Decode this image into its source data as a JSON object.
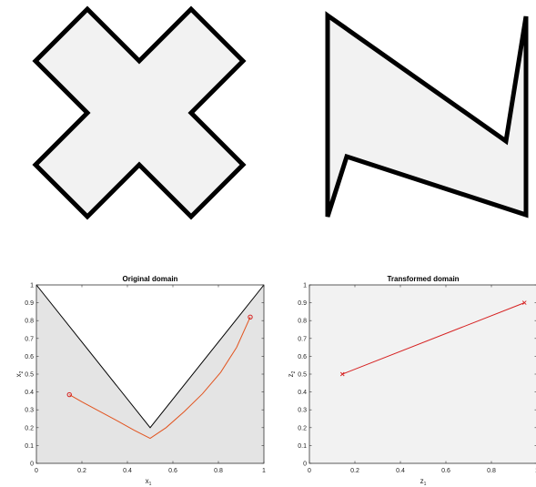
{
  "shapes": {
    "cross": {
      "fill": "#f2f2f2",
      "stroke": "#000000"
    },
    "zshape": {
      "fill": "#f2f2f2",
      "stroke": "#000000"
    }
  },
  "chart_data": [
    {
      "type": "line",
      "title": "Original domain",
      "xlabel": "x",
      "xlabel_sub": "1",
      "ylabel": "x",
      "ylabel_sub": "2",
      "xlim": [
        0,
        1
      ],
      "ylim": [
        0,
        1
      ],
      "xticks": [
        "0",
        "0.2",
        "0.4",
        "0.6",
        "0.8",
        "1"
      ],
      "yticks": [
        "0",
        "0.1",
        "0.2",
        "0.3",
        "0.4",
        "0.5",
        "0.6",
        "0.7",
        "0.8",
        "0.9",
        "1"
      ],
      "region": {
        "x": [
          0,
          0.5,
          1,
          1,
          0
        ],
        "y": [
          1,
          0.2,
          1,
          0,
          0
        ],
        "fill": "#e4e4e4"
      },
      "boundary": {
        "x": [
          0,
          0.5,
          1
        ],
        "y": [
          1,
          0.2,
          1
        ],
        "color": "#000000"
      },
      "curve": {
        "x": [
          0.145,
          0.2,
          0.28,
          0.36,
          0.43,
          0.5,
          0.57,
          0.65,
          0.73,
          0.81,
          0.88,
          0.94
        ],
        "y": [
          0.385,
          0.345,
          0.29,
          0.235,
          0.185,
          0.14,
          0.2,
          0.29,
          0.39,
          0.51,
          0.65,
          0.82
        ],
        "color": "#e2531e"
      },
      "endpoints": {
        "x": [
          0.145,
          0.94
        ],
        "y": [
          0.385,
          0.82
        ],
        "color": "#d62020"
      }
    },
    {
      "type": "line",
      "title": "Transformed domain",
      "xlabel": "z",
      "xlabel_sub": "1",
      "ylabel": "z",
      "ylabel_sub": "2",
      "xlim": [
        0,
        1
      ],
      "ylim": [
        0,
        1
      ],
      "xticks": [
        "0",
        "0.2",
        "0.4",
        "0.6",
        "0.8",
        "1"
      ],
      "yticks": [
        "0",
        "0.1",
        "0.2",
        "0.3",
        "0.4",
        "0.5",
        "0.6",
        "0.7",
        "0.8",
        "0.9",
        "1"
      ],
      "background": "#f2f2f2",
      "segment": {
        "x": [
          0.145,
          0.945
        ],
        "y": [
          0.5,
          0.9
        ],
        "color": "#d62020"
      }
    }
  ]
}
